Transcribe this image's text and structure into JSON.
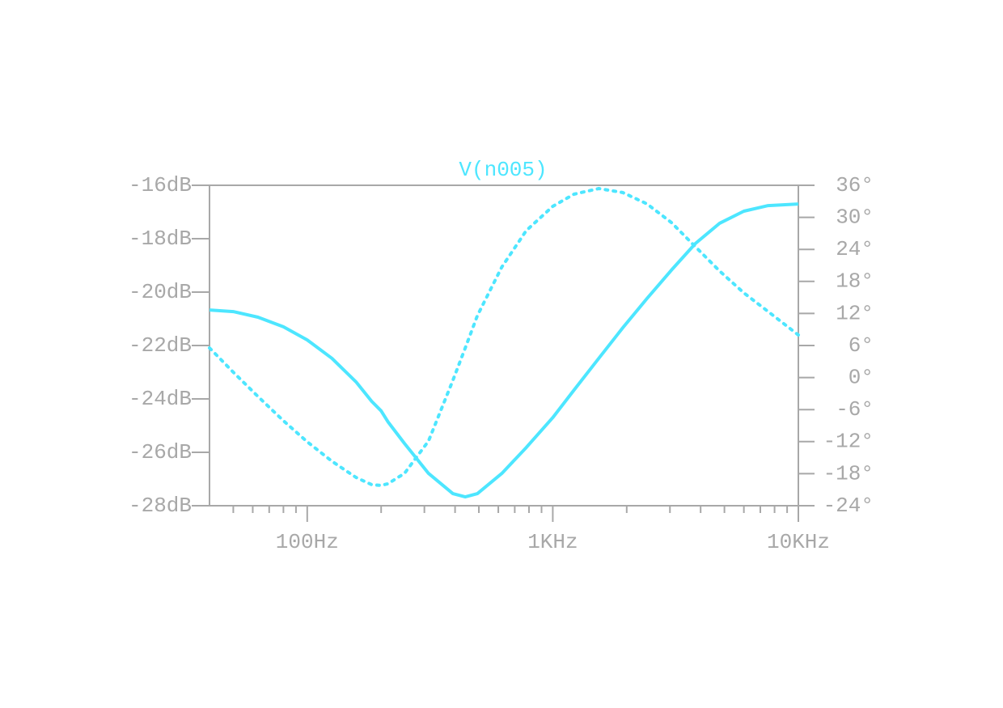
{
  "chart_data": {
    "type": "line",
    "title": "V(n005)",
    "title_color": "#4de6ff",
    "xscale": "log",
    "x": [
      40,
      50,
      63,
      80,
      100,
      126,
      158,
      183,
      200,
      213,
      249,
      312,
      392,
      440,
      493,
      620,
      780,
      1000,
      1220,
      1540,
      1930,
      2420,
      3040,
      3810,
      4780,
      6000,
      7530,
      10000
    ],
    "series": [
      {
        "color": "#4de6ff",
        "linestyle": "solid",
        "axis": "y",
        "values": [
          -20.67,
          -20.73,
          -20.94,
          -21.3,
          -21.79,
          -22.48,
          -23.36,
          -24.09,
          -24.45,
          -24.85,
          -25.67,
          -26.79,
          -27.55,
          -27.67,
          -27.55,
          -26.79,
          -25.82,
          -24.7,
          -23.67,
          -22.48,
          -21.33,
          -20.24,
          -19.18,
          -18.18,
          -17.42,
          -16.97,
          -16.76,
          -16.7
        ]
      },
      {
        "color": "#4de6ff",
        "linestyle": "dotted",
        "axis": "y2",
        "values": [
          5.55,
          1.0,
          -3.55,
          -8.09,
          -12.03,
          -15.67,
          -18.7,
          -20.06,
          -20.2,
          -19.9,
          -17.94,
          -11.88,
          -0.52,
          5.55,
          11.61,
          20.7,
          27.52,
          32.06,
          34.33,
          35.39,
          34.64,
          32.52,
          29.03,
          24.48,
          19.94,
          15.85,
          12.36,
          7.97
        ]
      }
    ],
    "xlim": [
      40,
      10000
    ],
    "xticks": [
      {
        "value": 100,
        "label": "100Hz"
      },
      {
        "value": 1000,
        "label": "1KHz"
      },
      {
        "value": 10000,
        "label": "10KHz"
      }
    ],
    "xminorticks": [
      50,
      60,
      70,
      80,
      90,
      200,
      300,
      400,
      500,
      600,
      700,
      800,
      900,
      2000,
      3000,
      4000,
      5000,
      6000,
      7000,
      8000,
      9000
    ],
    "ylim": [
      -28,
      -16
    ],
    "yticks": [
      {
        "value": -16,
        "label": "-16dB"
      },
      {
        "value": -18,
        "label": "-18dB"
      },
      {
        "value": -20,
        "label": "-20dB"
      },
      {
        "value": -22,
        "label": "-22dB"
      },
      {
        "value": -24,
        "label": "-24dB"
      },
      {
        "value": -26,
        "label": "-26dB"
      },
      {
        "value": -28,
        "label": "-28dB"
      }
    ],
    "y2lim": [
      -24,
      36
    ],
    "y2ticks": [
      {
        "value": 36,
        "label": "36°"
      },
      {
        "value": 30,
        "label": "30°"
      },
      {
        "value": 24,
        "label": "24°"
      },
      {
        "value": 18,
        "label": "18°"
      },
      {
        "value": 12,
        "label": "12°"
      },
      {
        "value": 6,
        "label": "6°"
      },
      {
        "value": 0,
        "label": "0°"
      },
      {
        "value": -6,
        "label": "-6°"
      },
      {
        "value": -12,
        "label": "-12°"
      },
      {
        "value": -18,
        "label": "-18°"
      },
      {
        "value": -24,
        "label": "-24°"
      }
    ]
  }
}
